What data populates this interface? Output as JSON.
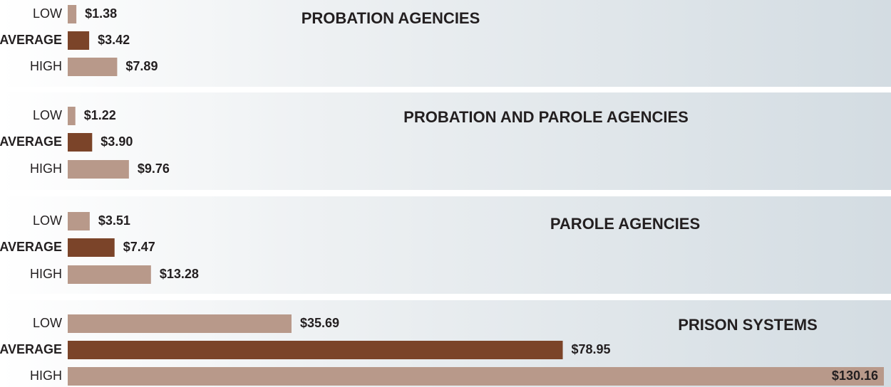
{
  "chart_data": [
    {
      "type": "bar",
      "title": "PROBATION AGENCIES",
      "categories": [
        "LOW",
        "AVERAGE",
        "HIGH"
      ],
      "values": [
        1.38,
        3.42,
        7.89
      ],
      "value_labels": [
        "$1.38",
        "$3.42",
        "$7.89"
      ],
      "colors": [
        "#b8998a",
        "#7b4429",
        "#b8998a"
      ]
    },
    {
      "type": "bar",
      "title": "PROBATION AND PAROLE AGENCIES",
      "categories": [
        "LOW",
        "AVERAGE",
        "HIGH"
      ],
      "values": [
        1.22,
        3.9,
        9.76
      ],
      "value_labels": [
        "$1.22",
        "$3.90",
        "$9.76"
      ],
      "colors": [
        "#b8998a",
        "#7b4429",
        "#b8998a"
      ]
    },
    {
      "type": "bar",
      "title": "PAROLE AGENCIES",
      "categories": [
        "LOW",
        "AVERAGE",
        "HIGH"
      ],
      "values": [
        3.51,
        7.47,
        13.28
      ],
      "value_labels": [
        "$3.51",
        "$7.47",
        "$13.28"
      ],
      "colors": [
        "#b8998a",
        "#7b4429",
        "#b8998a"
      ]
    },
    {
      "type": "bar",
      "title": "PRISON SYSTEMS",
      "categories": [
        "LOW",
        "AVERAGE",
        "HIGH"
      ],
      "values": [
        35.69,
        78.95,
        130.16
      ],
      "value_labels": [
        "$35.69",
        "$78.95",
        "$130.16"
      ],
      "colors": [
        "#b8998a",
        "#7b4429",
        "#b8998a"
      ]
    }
  ]
}
